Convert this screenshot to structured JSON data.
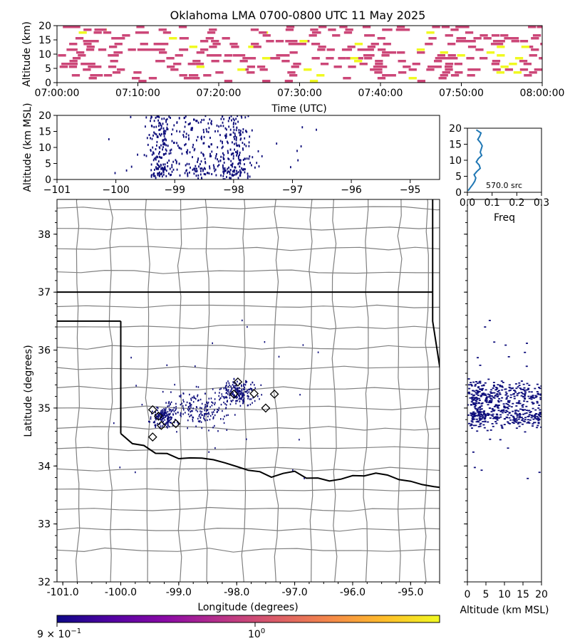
{
  "title": "Oklahoma LMA 0700-0800 UTC 11 May 2025",
  "colors": {
    "source_dot": "#0c0c7a",
    "time_bar": "#cc4778",
    "time_bar_high": "#f0f921",
    "hist_line": "#1f77b4",
    "county_line": "#808080",
    "state_line": "#000000",
    "colorbar": [
      "#0d0887",
      "#5302a3",
      "#8b0aa5",
      "#b83289",
      "#db5c68",
      "#f48849",
      "#febd2a",
      "#f0f921"
    ]
  },
  "chart_data": [
    {
      "id": "time_height",
      "type": "scatter",
      "xlabel": "Time (UTC)",
      "ylabel": "Altitude (km)",
      "xlim": [
        "07:00:00",
        "08:00:00"
      ],
      "xticks": [
        "07:00:00",
        "07:10:00",
        "07:20:00",
        "07:30:00",
        "07:40:00",
        "07:50:00",
        "08:00:00"
      ],
      "ylim": [
        0,
        20
      ],
      "yticks": [
        "0",
        "5",
        "10",
        "15",
        "20"
      ],
      "marker": "binned bars, colored by count"
    },
    {
      "id": "lon_height",
      "type": "scatter",
      "xlabel": "",
      "ylabel": "Altitude (km MSL)",
      "xlim": [
        -101,
        -94.5
      ],
      "xticks": [
        "−101",
        "−100",
        "−99",
        "−98",
        "−97",
        "−96",
        "−95"
      ],
      "ylim": [
        0,
        20
      ],
      "yticks": [
        "0",
        "5",
        "10",
        "15",
        "20"
      ]
    },
    {
      "id": "histogram",
      "type": "line",
      "xlabel": "Freq",
      "xlim": [
        0,
        0.3
      ],
      "xticks": [
        "0.0",
        "0.1",
        "0.2",
        "0.3"
      ],
      "ylim": [
        0,
        20
      ],
      "yticks": [
        "0",
        "5",
        "10",
        "15",
        "20"
      ],
      "annotation": "570.0 src",
      "series": [
        {
          "alt": [
            0.5,
            1.5,
            2.5,
            3.5,
            4.5,
            5.5,
            6.5,
            7.5,
            8.5,
            9.5,
            10.5,
            11.5,
            12.5,
            13.5,
            14.5,
            15.5,
            16.5,
            17.5,
            18.5,
            19.5
          ],
          "freq": [
            0.003,
            0.012,
            0.022,
            0.03,
            0.034,
            0.027,
            0.038,
            0.052,
            0.048,
            0.036,
            0.044,
            0.058,
            0.052,
            0.056,
            0.06,
            0.053,
            0.042,
            0.05,
            0.055,
            0.036
          ]
        }
      ]
    },
    {
      "id": "plan_view",
      "type": "scatter",
      "xlabel": "Longitude (degrees)",
      "ylabel": "Latitude (degrees)",
      "xlim": [
        -101.1,
        -94.5
      ],
      "xticks": [
        "-101.0",
        "-100.0",
        "-99.0",
        "-98.0",
        "-97.0",
        "-96.0",
        "-95.0"
      ],
      "ylim": [
        32,
        38.6
      ],
      "yticks": [
        "32",
        "33",
        "34",
        "35",
        "36",
        "37",
        "38"
      ],
      "stations": [
        {
          "lon": -99.45,
          "lat": 34.97
        },
        {
          "lon": -99.35,
          "lat": 34.86
        },
        {
          "lon": -99.3,
          "lat": 34.7
        },
        {
          "lon": -99.45,
          "lat": 34.5
        },
        {
          "lon": -99.05,
          "lat": 34.73
        },
        {
          "lon": -97.98,
          "lat": 35.45
        },
        {
          "lon": -98.05,
          "lat": 35.24
        },
        {
          "lon": -97.7,
          "lat": 35.25
        },
        {
          "lon": -97.35,
          "lat": 35.24
        },
        {
          "lon": -97.5,
          "lat": 35.0
        }
      ]
    },
    {
      "id": "height_lat",
      "type": "scatter",
      "xlabel": "Altitude (km MSL)",
      "xlim": [
        0,
        20
      ],
      "xticks": [
        "0",
        "5",
        "10",
        "15",
        "20"
      ],
      "ylim": [
        32,
        38.6
      ]
    },
    {
      "id": "colorbar",
      "type": "heatmap",
      "scale": "log",
      "tick_labels": {
        "min": "9 × 10",
        "min_exp": "−1",
        "mid": "10",
        "mid_exp": "0"
      }
    }
  ]
}
